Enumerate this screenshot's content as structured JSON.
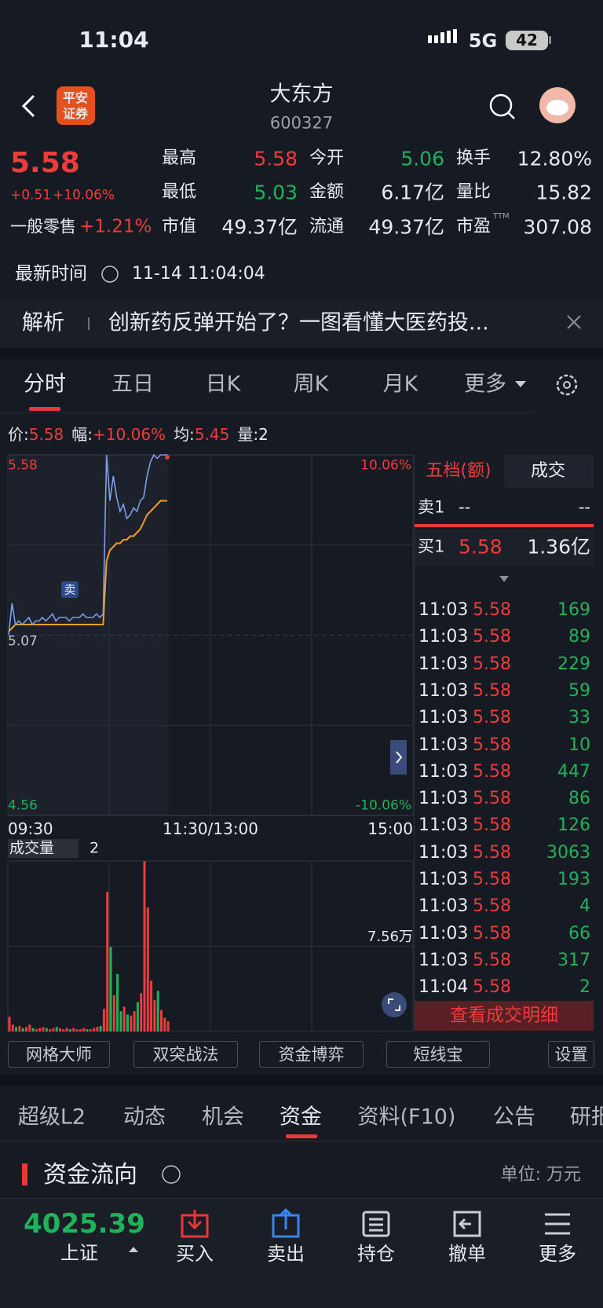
{
  "status_bar": {
    "time": "11:04",
    "network": "5G",
    "battery": "42"
  },
  "header": {
    "logo": [
      "平安",
      "证券"
    ],
    "name": "大东方",
    "code": "600327"
  },
  "quote": {
    "price": "5.58",
    "change": "+0.51",
    "change_pct": "+10.06%",
    "sector": "一般零售",
    "sector_pct": "+1.21%",
    "fields": [
      {
        "label": "最高",
        "value": "5.58"
      },
      {
        "label": "今开",
        "value": "5.06"
      },
      {
        "label": "换手",
        "value": "12.80%"
      },
      {
        "label": "最低",
        "value": "5.03"
      },
      {
        "label": "金额",
        "value": "6.17亿"
      },
      {
        "label": "量比",
        "value": "15.82"
      },
      {
        "label": "市值",
        "value": "49.37亿"
      },
      {
        "label": "流通",
        "value": "49.37亿"
      },
      {
        "label": "市盈",
        "label_sup": "TTM",
        "value": "307.08"
      }
    ],
    "update_label": "最新时间",
    "update_time": "11-14 11:04:04"
  },
  "news": {
    "tag": "解析",
    "text": "创新药反弹开始了？一图看懂大医药投..."
  },
  "chart_tabs": [
    "分时",
    "五日",
    "日K",
    "周K",
    "月K",
    "更多"
  ],
  "intraday": {
    "info": [
      {
        "label": "价:",
        "value": "5.58"
      },
      {
        "label": "幅:",
        "value": "+10.06%"
      },
      {
        "label": "均:",
        "value": "5.45"
      },
      {
        "label": "量:",
        "value": "2"
      }
    ],
    "ylim": [
      4.56,
      5.58
    ],
    "yticks": [
      5.58,
      5.07,
      4.56
    ],
    "pct_labels": [
      "10.06%",
      "-10.06%"
    ],
    "xlabels": [
      "09:30",
      "11:30/13:00",
      "15:00"
    ],
    "marker": "卖",
    "price": [
      5.07,
      5.16,
      5.1,
      5.11,
      5.1,
      5.11,
      5.12,
      5.1,
      5.11,
      5.11,
      5.12,
      5.11,
      5.12,
      5.13,
      5.11,
      5.12,
      5.12,
      5.12,
      5.11,
      5.12,
      5.12,
      5.12,
      5.13,
      5.12,
      5.12,
      5.12,
      5.13,
      5.12,
      5.13,
      5.58,
      5.45,
      5.52,
      5.46,
      5.42,
      5.44,
      5.4,
      5.41,
      5.43,
      5.42,
      5.45,
      5.46,
      5.52,
      5.56,
      5.58,
      5.57,
      5.58,
      5.58,
      5.58
    ],
    "average": [
      5.08,
      5.09,
      5.1,
      5.1,
      5.1,
      5.1,
      5.1,
      5.1,
      5.1,
      5.1,
      5.1,
      5.1,
      5.1,
      5.1,
      5.1,
      5.1,
      5.1,
      5.1,
      5.1,
      5.1,
      5.1,
      5.1,
      5.1,
      5.1,
      5.1,
      5.1,
      5.1,
      5.1,
      5.1,
      5.28,
      5.31,
      5.32,
      5.33,
      5.33,
      5.34,
      5.34,
      5.35,
      5.35,
      5.36,
      5.37,
      5.39,
      5.41,
      5.42,
      5.43,
      5.44,
      5.45,
      5.45,
      5.45
    ]
  },
  "volume": {
    "indicator": "成交量",
    "current": "2",
    "ylim": [
      0,
      15.12
    ],
    "yticks": [
      {
        "value": 7.56,
        "label": "7.56万"
      }
    ],
    "values": [
      1.3,
      0.6,
      0.4,
      0.5,
      0.3,
      0.4,
      0.6,
      0.3,
      0.2,
      0.3,
      0.4,
      0.3,
      0.2,
      0.3,
      0.4,
      0.3,
      0.2,
      0.3,
      0.2,
      0.3,
      0.2,
      0.2,
      0.3,
      0.2,
      0.2,
      0.3,
      0.4,
      0.5,
      2.0,
      12.4,
      7.5,
      3.2,
      5.1,
      1.8,
      2.2,
      1.5,
      1.4,
      1.8,
      2.6,
      3.4,
      15.1,
      11.0,
      4.5,
      2.8,
      3.6,
      1.9,
      1.2,
      0.9
    ]
  },
  "order_book": {
    "tabs": [
      "五档(额)",
      "成交"
    ],
    "sell": {
      "label": "卖1",
      "price": "--",
      "amount": "--"
    },
    "buy": {
      "label": "买1",
      "price": "5.58",
      "amount": "1.36亿"
    },
    "trades": [
      {
        "time": "11:03",
        "price": "5.58",
        "volume": "169"
      },
      {
        "time": "11:03",
        "price": "5.58",
        "volume": "89"
      },
      {
        "time": "11:03",
        "price": "5.58",
        "volume": "229"
      },
      {
        "time": "11:03",
        "price": "5.58",
        "volume": "59"
      },
      {
        "time": "11:03",
        "price": "5.58",
        "volume": "33"
      },
      {
        "time": "11:03",
        "price": "5.58",
        "volume": "10"
      },
      {
        "time": "11:03",
        "price": "5.58",
        "volume": "447"
      },
      {
        "time": "11:03",
        "price": "5.58",
        "volume": "86"
      },
      {
        "time": "11:03",
        "price": "5.58",
        "volume": "126"
      },
      {
        "time": "11:03",
        "price": "5.58",
        "volume": "3063"
      },
      {
        "time": "11:03",
        "price": "5.58",
        "volume": "193"
      },
      {
        "time": "11:03",
        "price": "5.58",
        "volume": "4"
      },
      {
        "time": "11:03",
        "price": "5.58",
        "volume": "66"
      },
      {
        "time": "11:03",
        "price": "5.58",
        "volume": "317"
      },
      {
        "time": "11:04",
        "price": "5.58",
        "volume": "2"
      }
    ],
    "detail": "查看成交明细"
  },
  "tools": [
    "网格大师",
    "双突战法",
    "资金博弈",
    "短线宝",
    "设置"
  ],
  "info_tabs": [
    "超级L2",
    "动态",
    "机会",
    "资金",
    "资料(F10)",
    "公告",
    "研报"
  ],
  "section": {
    "title": "资金流向",
    "unit": "单位: 万元"
  },
  "bottom_bar": {
    "index_value": "4025.39",
    "index_name": "上证",
    "actions": [
      "买入",
      "卖出",
      "持仓",
      "撤单",
      "更多"
    ]
  }
}
